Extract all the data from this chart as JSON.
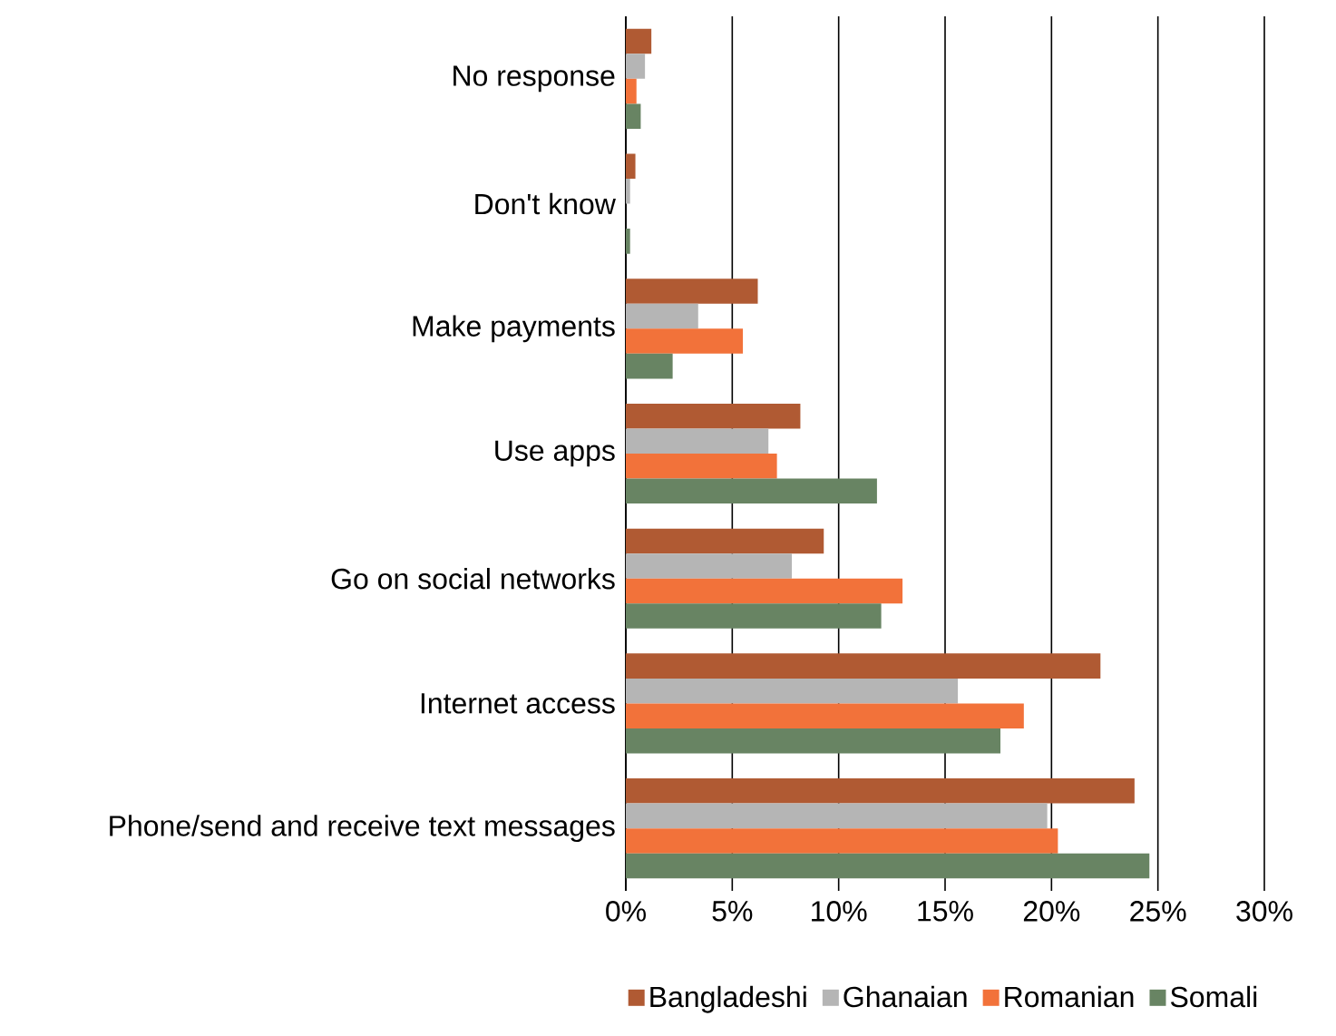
{
  "chart_data": {
    "type": "bar",
    "orientation": "horizontal",
    "categories": [
      "No response",
      "Don't know",
      "Make payments",
      "Use apps",
      "Go on social networks",
      "Internet access",
      "Phone/send and receive text messages"
    ],
    "series": [
      {
        "name": "Bangladeshi",
        "color": "#b05a33",
        "values": [
          1.2,
          0.45,
          6.2,
          8.2,
          9.3,
          22.3,
          23.9
        ]
      },
      {
        "name": "Ghanaian",
        "color": "#b5b5b5",
        "values": [
          0.9,
          0.2,
          3.4,
          6.7,
          7.8,
          15.6,
          19.8
        ]
      },
      {
        "name": "Romanian",
        "color": "#f2723a",
        "values": [
          0.5,
          0,
          5.5,
          7.1,
          13.0,
          18.7,
          20.3
        ]
      },
      {
        "name": "Somali",
        "color": "#688463",
        "values": [
          0.7,
          0.2,
          2.2,
          11.8,
          12.0,
          17.6,
          24.6
        ]
      }
    ],
    "xlim": [
      0,
      30
    ],
    "xticks": [
      {
        "value": 0,
        "label": "0%"
      },
      {
        "value": 5,
        "label": "5%"
      },
      {
        "value": 10,
        "label": "10%"
      },
      {
        "value": 15,
        "label": "15%"
      },
      {
        "value": 20,
        "label": "20%"
      },
      {
        "value": 25,
        "label": "25%"
      },
      {
        "value": 30,
        "label": "30%"
      }
    ],
    "grid": "x",
    "legend": "bottom"
  }
}
